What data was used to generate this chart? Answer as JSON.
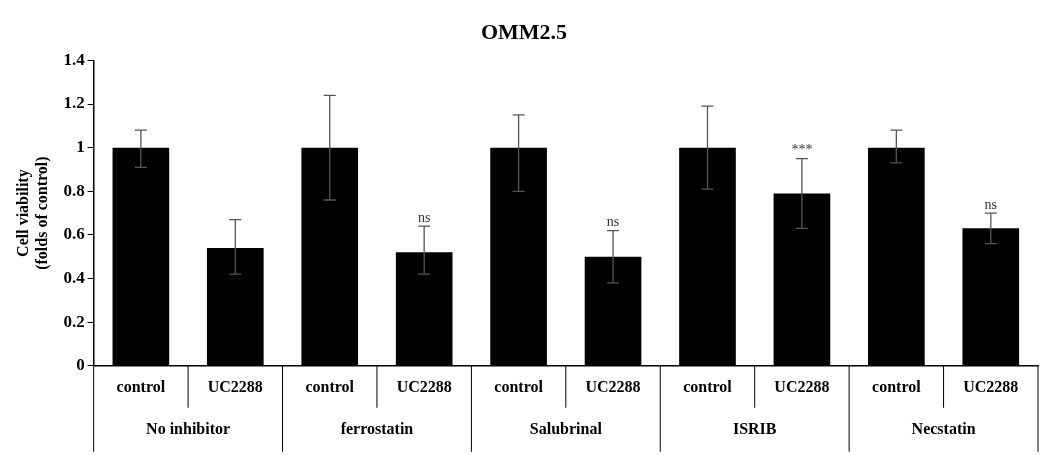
{
  "chart_data": {
    "type": "bar",
    "title": "OMM2.5",
    "ylabel": "Cell viability\n(folds of control)",
    "categories": [
      "control",
      "UC2288",
      "control",
      "UC2288",
      "control",
      "UC2288",
      "control",
      "UC2288",
      "control",
      "UC2288"
    ],
    "values": [
      1,
      0.54,
      1,
      0.52,
      1,
      0.5,
      1,
      0.79,
      1,
      0.63
    ],
    "errors": [
      [
        0.91,
        1.08
      ],
      [
        0.42,
        0.67
      ],
      [
        0.76,
        1.24
      ],
      [
        0.42,
        0.64
      ],
      [
        0.8,
        1.15
      ],
      [
        0.38,
        0.62
      ],
      [
        0.81,
        1.19
      ],
      [
        0.63,
        0.95
      ],
      [
        0.93,
        1.08
      ],
      [
        0.56,
        0.7
      ]
    ],
    "color": "#000000",
    "ylim": [
      0,
      1.4
    ],
    "yticks": [
      0,
      0.2,
      0.4,
      0.6,
      0.8,
      1,
      1.2,
      1.4
    ],
    "grid": false,
    "legend": false,
    "value_labels": [
      null,
      null,
      null,
      "ns",
      null,
      "ns",
      null,
      "***",
      null,
      "ns"
    ],
    "annotations": [
      "No inhibitor",
      "ferrostatin",
      "Salubrinal",
      "ISRIB",
      "Necstatin"
    ]
  }
}
